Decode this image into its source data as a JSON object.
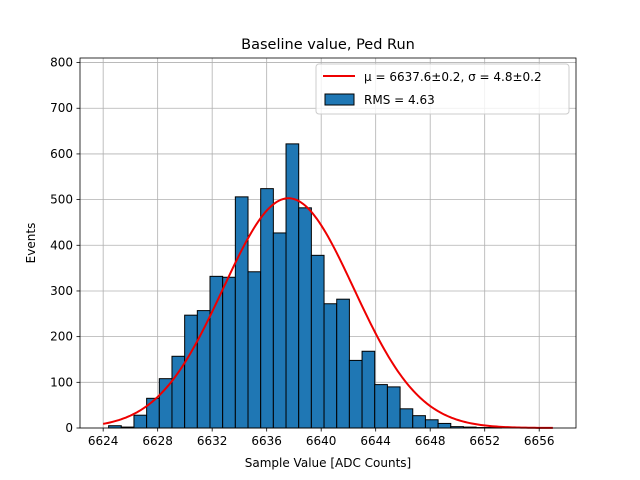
{
  "chart_data": {
    "type": "bar",
    "title": "Baseline value, Ped Run",
    "xlabel": "Sample Value [ADC Counts]",
    "ylabel": "Events",
    "xlim": [
      6622.3,
      6658.7
    ],
    "ylim": [
      0,
      810
    ],
    "xticks": [
      6624,
      6628,
      6632,
      6636,
      6640,
      6644,
      6648,
      6652,
      6656
    ],
    "yticks": [
      0,
      100,
      200,
      300,
      400,
      500,
      600,
      700,
      800
    ],
    "grid": true,
    "legend_position": "top-right",
    "histogram": {
      "name": "RMS = 4.63",
      "bin_width": 0.93,
      "bin_starts": [
        6624.4,
        6625.33,
        6626.26,
        6627.19,
        6628.12,
        6629.05,
        6629.98,
        6630.91,
        6631.84,
        6632.77,
        6633.7,
        6634.63,
        6635.56,
        6636.49,
        6637.42,
        6638.35,
        6639.28,
        6640.21,
        6641.14,
        6642.07,
        6643.0,
        6643.93,
        6644.86,
        6645.79,
        6646.72,
        6647.65,
        6648.58,
        6649.51,
        6650.44,
        6651.37,
        6652.3,
        6653.23,
        6654.16,
        6655.09
      ],
      "counts": [
        5,
        2,
        28,
        65,
        108,
        157,
        247,
        257,
        332,
        330,
        506,
        342,
        524,
        427,
        622,
        482,
        378,
        272,
        282,
        148,
        168,
        95,
        90,
        42,
        27,
        18,
        10,
        3,
        2,
        1,
        1,
        0,
        0,
        0
      ],
      "color": "#1f77b4",
      "edge_color": "#000000"
    },
    "fit": {
      "name": "μ = 6637.6±0.2, σ = 4.8±0.2",
      "type": "gaussian",
      "mu": 6637.6,
      "sigma": 4.8,
      "amplitude": 503,
      "x_range": [
        6624,
        6657
      ],
      "color": "#ee0000"
    }
  }
}
